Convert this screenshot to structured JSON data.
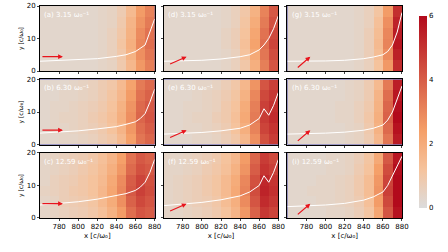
{
  "chart_data": {
    "type": "heatmap",
    "x_label": "x [c/ω₀]",
    "y_label": "y [c/ω₀]",
    "x": [
      765,
      775,
      785,
      795,
      805,
      815,
      825,
      835,
      845,
      855,
      865,
      875
    ],
    "y": [
      1.67,
      5,
      8.33,
      11.67,
      15,
      18.33
    ],
    "xlim": [
      760,
      880
    ],
    "ylim": [
      0,
      20
    ],
    "xticks": [
      780,
      800,
      820,
      840,
      860,
      880
    ],
    "yticks": [
      0,
      10,
      20
    ],
    "line_x": [
      760,
      780,
      800,
      820,
      840,
      850,
      860,
      865,
      870,
      875,
      880
    ],
    "colorbar": {
      "range": [
        0,
        6
      ],
      "ticks": [
        0,
        2,
        4,
        6
      ]
    },
    "panels": [
      {
        "title": "(a) 3.15 ω₀⁻¹",
        "z": [
          [
            0.3,
            0.3,
            0.3,
            0.3,
            0.3,
            0.3,
            0.4,
            0.5,
            0.9,
            1.6,
            2.6,
            3.2
          ],
          [
            0.3,
            0.3,
            0.3,
            0.3,
            0.3,
            0.3,
            0.4,
            0.6,
            1.0,
            1.8,
            2.8,
            3.4
          ],
          [
            0.3,
            0.3,
            0.3,
            0.3,
            0.3,
            0.3,
            0.4,
            0.6,
            1.1,
            1.9,
            3.0,
            3.6
          ],
          [
            0.3,
            0.3,
            0.3,
            0.3,
            0.3,
            0.3,
            0.4,
            0.6,
            1.0,
            1.8,
            2.9,
            3.5
          ],
          [
            0.3,
            0.3,
            0.3,
            0.3,
            0.3,
            0.3,
            0.4,
            0.5,
            0.9,
            1.7,
            2.7,
            3.3
          ],
          [
            0.3,
            0.3,
            0.3,
            0.3,
            0.3,
            0.3,
            0.4,
            0.5,
            0.8,
            1.5,
            2.5,
            3.1
          ]
        ],
        "line": [
          3,
          3.2,
          3.4,
          3.8,
          4.5,
          5,
          6,
          7,
          8,
          12,
          16
        ]
      },
      {
        "title": "(b) 6.30 ω₀⁻¹",
        "z": [
          [
            0.3,
            0.3,
            0.4,
            0.4,
            0.5,
            0.6,
            0.8,
            1.0,
            1.5,
            2.4,
            3.4,
            3.8
          ],
          [
            0.3,
            0.4,
            0.4,
            0.5,
            0.6,
            0.7,
            0.9,
            1.2,
            1.7,
            2.6,
            3.6,
            4.0
          ],
          [
            0.3,
            0.4,
            0.5,
            0.5,
            0.6,
            0.8,
            1.0,
            1.3,
            1.9,
            2.8,
            3.8,
            4.2
          ],
          [
            0.3,
            0.4,
            0.4,
            0.5,
            0.6,
            0.7,
            0.9,
            1.2,
            1.8,
            2.7,
            3.7,
            4.1
          ],
          [
            0.3,
            0.3,
            0.4,
            0.4,
            0.5,
            0.6,
            0.8,
            1.1,
            1.6,
            2.5,
            3.5,
            3.9
          ],
          [
            0.3,
            0.3,
            0.3,
            0.4,
            0.5,
            0.6,
            0.8,
            1.0,
            1.5,
            2.3,
            3.3,
            3.7
          ]
        ],
        "line": [
          3.5,
          3.8,
          4.2,
          4.8,
          5.5,
          6.2,
          7,
          8,
          9.5,
          13,
          17
        ]
      },
      {
        "title": "(c) 12.59 ω₀⁻¹",
        "z": [
          [
            0.4,
            0.5,
            0.6,
            0.7,
            0.8,
            1.0,
            1.3,
            1.8,
            2.5,
            3.6,
            4.2,
            4.0
          ],
          [
            0.4,
            0.5,
            0.7,
            0.8,
            0.9,
            1.1,
            1.5,
            2.0,
            2.8,
            3.9,
            4.5,
            4.2
          ],
          [
            0.5,
            0.6,
            0.7,
            0.9,
            1.0,
            1.2,
            1.6,
            2.2,
            3.0,
            4.1,
            4.7,
            4.4
          ],
          [
            0.4,
            0.6,
            0.7,
            0.8,
            1.0,
            1.2,
            1.5,
            2.1,
            2.9,
            4.0,
            4.6,
            4.3
          ],
          [
            0.4,
            0.5,
            0.6,
            0.7,
            0.9,
            1.1,
            1.4,
            1.9,
            2.6,
            3.7,
            4.3,
            4.1
          ],
          [
            0.4,
            0.5,
            0.6,
            0.7,
            0.8,
            1.0,
            1.3,
            1.7,
            2.4,
            3.5,
            4.1,
            3.9
          ]
        ],
        "line": [
          4,
          4.5,
          5,
          5.8,
          6.8,
          7.5,
          8.5,
          9.5,
          11,
          14,
          18
        ]
      },
      {
        "title": "(d) 3.15 ω₀⁻¹",
        "z": [
          [
            0.3,
            0.3,
            0.3,
            0.3,
            0.3,
            0.3,
            0.4,
            0.6,
            1.0,
            1.9,
            3.2,
            4.2
          ],
          [
            0.3,
            0.3,
            0.3,
            0.3,
            0.3,
            0.3,
            0.4,
            0.6,
            1.2,
            2.1,
            3.4,
            4.4
          ],
          [
            0.3,
            0.3,
            0.3,
            0.3,
            0.3,
            0.3,
            0.5,
            0.7,
            1.3,
            2.3,
            3.6,
            4.6
          ],
          [
            0.3,
            0.3,
            0.3,
            0.3,
            0.3,
            0.3,
            0.5,
            0.7,
            1.2,
            2.2,
            3.5,
            4.5
          ],
          [
            0.3,
            0.3,
            0.3,
            0.3,
            0.3,
            0.3,
            0.4,
            0.6,
            1.1,
            2.0,
            3.3,
            4.3
          ],
          [
            0.3,
            0.3,
            0.3,
            0.3,
            0.3,
            0.3,
            0.4,
            0.6,
            1.0,
            1.8,
            3.1,
            4.1
          ]
        ],
        "line": [
          3,
          3.1,
          3.3,
          3.7,
          4.4,
          5,
          6.5,
          8,
          10,
          13,
          17
        ]
      },
      {
        "title": "(e) 6.30 ω₀⁻¹",
        "z": [
          [
            0.3,
            0.3,
            0.3,
            0.4,
            0.4,
            0.5,
            0.7,
            1.0,
            1.6,
            2.8,
            4.3,
            4.8
          ],
          [
            0.3,
            0.3,
            0.4,
            0.4,
            0.5,
            0.6,
            0.8,
            1.2,
            1.9,
            3.1,
            4.6,
            5.0
          ],
          [
            0.3,
            0.3,
            0.4,
            0.5,
            0.5,
            0.7,
            0.9,
            1.3,
            2.1,
            3.3,
            4.8,
            5.2
          ],
          [
            0.3,
            0.3,
            0.4,
            0.4,
            0.5,
            0.6,
            0.9,
            1.2,
            2.0,
            3.2,
            4.7,
            5.1
          ],
          [
            0.3,
            0.3,
            0.3,
            0.4,
            0.5,
            0.6,
            0.8,
            1.1,
            1.8,
            3.0,
            4.5,
            4.9
          ],
          [
            0.3,
            0.3,
            0.3,
            0.4,
            0.4,
            0.5,
            0.7,
            1.0,
            1.6,
            2.7,
            4.2,
            4.7
          ]
        ],
        "line": [
          3.2,
          3.4,
          3.7,
          4.2,
          5,
          6,
          8,
          11,
          9,
          12,
          16
        ]
      },
      {
        "title": "(f) 12.59 ω₀⁻¹",
        "z": [
          [
            0.4,
            0.4,
            0.5,
            0.6,
            0.7,
            0.9,
            1.2,
            1.7,
            2.6,
            3.9,
            4.9,
            4.6
          ],
          [
            0.4,
            0.5,
            0.6,
            0.7,
            0.8,
            1.0,
            1.4,
            1.9,
            2.9,
            4.2,
            5.2,
            4.9
          ],
          [
            0.4,
            0.5,
            0.6,
            0.7,
            0.9,
            1.1,
            1.5,
            2.1,
            3.1,
            4.4,
            5.4,
            5.1
          ],
          [
            0.4,
            0.5,
            0.6,
            0.7,
            0.9,
            1.1,
            1.5,
            2.0,
            3.0,
            4.3,
            5.3,
            5.0
          ],
          [
            0.4,
            0.4,
            0.5,
            0.6,
            0.8,
            1.0,
            1.3,
            1.8,
            2.7,
            4.0,
            5.0,
            4.7
          ],
          [
            0.4,
            0.4,
            0.5,
            0.6,
            0.7,
            0.9,
            1.2,
            1.6,
            2.5,
            3.8,
            4.8,
            4.5
          ]
        ],
        "line": [
          3.8,
          4.2,
          4.8,
          5.6,
          6.8,
          8,
          10,
          13,
          11,
          14,
          18
        ]
      },
      {
        "title": "(g) 3.15 ω₀⁻¹",
        "z": [
          [
            0.3,
            0.3,
            0.3,
            0.3,
            0.3,
            0.3,
            0.3,
            0.4,
            0.6,
            1.2,
            2.6,
            5.2
          ],
          [
            0.3,
            0.3,
            0.3,
            0.3,
            0.3,
            0.3,
            0.3,
            0.4,
            0.7,
            1.4,
            2.9,
            5.5
          ],
          [
            0.3,
            0.3,
            0.3,
            0.3,
            0.3,
            0.3,
            0.3,
            0.4,
            0.7,
            1.5,
            3.1,
            5.7
          ],
          [
            0.3,
            0.3,
            0.3,
            0.3,
            0.3,
            0.3,
            0.3,
            0.4,
            0.7,
            1.4,
            3.0,
            5.6
          ],
          [
            0.3,
            0.3,
            0.3,
            0.3,
            0.3,
            0.3,
            0.3,
            0.4,
            0.6,
            1.3,
            2.8,
            5.4
          ],
          [
            0.3,
            0.3,
            0.3,
            0.3,
            0.3,
            0.3,
            0.3,
            0.4,
            0.6,
            1.1,
            2.5,
            5.1
          ]
        ],
        "line": [
          3,
          3,
          3.1,
          3.3,
          3.8,
          4.3,
          5,
          6,
          8,
          12,
          18
        ]
      },
      {
        "title": "(h) 6.30 ω₀⁻¹",
        "z": [
          [
            0.3,
            0.3,
            0.3,
            0.3,
            0.3,
            0.3,
            0.4,
            0.5,
            0.8,
            1.6,
            3.4,
            5.6
          ],
          [
            0.3,
            0.3,
            0.3,
            0.3,
            0.3,
            0.3,
            0.4,
            0.5,
            0.9,
            1.8,
            3.7,
            5.8
          ],
          [
            0.3,
            0.3,
            0.3,
            0.3,
            0.3,
            0.4,
            0.4,
            0.6,
            1.0,
            1.9,
            3.9,
            6.0
          ],
          [
            0.3,
            0.3,
            0.3,
            0.3,
            0.3,
            0.4,
            0.4,
            0.6,
            0.9,
            1.8,
            3.8,
            5.9
          ],
          [
            0.3,
            0.3,
            0.3,
            0.3,
            0.3,
            0.3,
            0.4,
            0.5,
            0.8,
            1.7,
            3.6,
            5.7
          ],
          [
            0.3,
            0.3,
            0.3,
            0.3,
            0.3,
            0.3,
            0.4,
            0.5,
            0.8,
            1.5,
            3.3,
            5.5
          ]
        ],
        "line": [
          3.2,
          3.3,
          3.5,
          3.8,
          4.4,
          5,
          6,
          7.5,
          10,
          14,
          18
        ]
      },
      {
        "title": "(i) 12.59 ω₀⁻¹",
        "z": [
          [
            0.3,
            0.3,
            0.3,
            0.3,
            0.4,
            0.4,
            0.5,
            0.7,
            1.1,
            2.2,
            4.2,
            5.8
          ],
          [
            0.3,
            0.3,
            0.3,
            0.4,
            0.4,
            0.5,
            0.6,
            0.8,
            1.3,
            2.5,
            4.5,
            6.0
          ],
          [
            0.3,
            0.3,
            0.4,
            0.4,
            0.4,
            0.5,
            0.6,
            0.9,
            1.4,
            2.7,
            4.7,
            6.0
          ],
          [
            0.3,
            0.3,
            0.3,
            0.4,
            0.4,
            0.5,
            0.6,
            0.9,
            1.4,
            2.6,
            4.6,
            6.0
          ],
          [
            0.3,
            0.3,
            0.3,
            0.3,
            0.4,
            0.4,
            0.5,
            0.8,
            1.2,
            2.4,
            4.4,
            5.9
          ],
          [
            0.3,
            0.3,
            0.3,
            0.3,
            0.4,
            0.4,
            0.5,
            0.7,
            1.1,
            2.1,
            4.1,
            5.7
          ]
        ],
        "line": [
          3.5,
          3.7,
          4,
          4.5,
          5.5,
          6.5,
          8,
          10,
          13,
          16,
          19
        ]
      }
    ]
  }
}
